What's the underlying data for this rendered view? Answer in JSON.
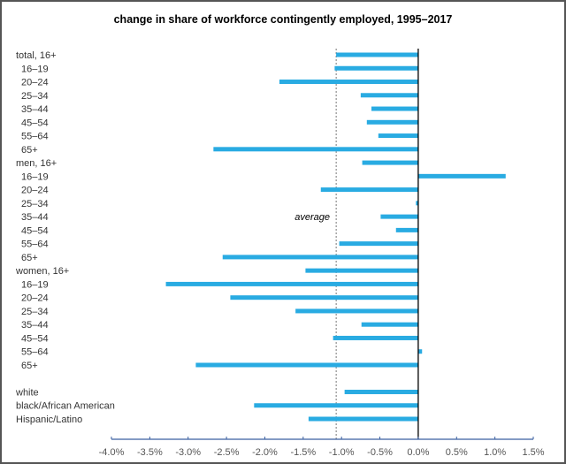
{
  "chart_data": {
    "type": "bar",
    "orientation": "horizontal",
    "title": "change in share of workforce contingently employed, 1995–2017",
    "xlim": [
      -4.0,
      1.5
    ],
    "x_ticks": [
      "-4.0%",
      "-3.5%",
      "-3.0%",
      "-2.5%",
      "-2.0%",
      "-1.5%",
      "-1.0%",
      "-0.5%",
      "0.0%",
      "0.5%",
      "1.0%",
      "1.5%"
    ],
    "x_tick_values": [
      -4.0,
      -3.5,
      -3.0,
      -2.5,
      -2.0,
      -1.5,
      -1.0,
      -0.5,
      0.0,
      0.5,
      1.0,
      1.5
    ],
    "grid": false,
    "bar_color": "#29abe2",
    "average": {
      "label": "average",
      "value": -1.07
    },
    "categories": [
      {
        "label": "total, 16+",
        "value": -1.07,
        "indent": false
      },
      {
        "label": "16–19",
        "value": -1.09,
        "indent": true
      },
      {
        "label": "20–24",
        "value": -1.81,
        "indent": true
      },
      {
        "label": "25–34",
        "value": -0.75,
        "indent": true
      },
      {
        "label": "35–44",
        "value": -0.61,
        "indent": true
      },
      {
        "label": "45–54",
        "value": -0.67,
        "indent": true
      },
      {
        "label": "55–64",
        "value": -0.52,
        "indent": true
      },
      {
        "label": "65+",
        "value": -2.67,
        "indent": true
      },
      {
        "label": "men, 16+",
        "value": -0.73,
        "indent": false
      },
      {
        "label": "16–19",
        "value": 1.14,
        "indent": true
      },
      {
        "label": "20–24",
        "value": -1.27,
        "indent": true
      },
      {
        "label": "25–34",
        "value": -0.03,
        "indent": true
      },
      {
        "label": "35–44",
        "value": -0.49,
        "indent": true
      },
      {
        "label": "45–54",
        "value": -0.29,
        "indent": true
      },
      {
        "label": "55–64",
        "value": -1.03,
        "indent": true
      },
      {
        "label": "65+",
        "value": -2.55,
        "indent": true
      },
      {
        "label": "women, 16+",
        "value": -1.47,
        "indent": false
      },
      {
        "label": "16–19",
        "value": -3.29,
        "indent": true
      },
      {
        "label": "20–24",
        "value": -2.45,
        "indent": true
      },
      {
        "label": "25–34",
        "value": -1.6,
        "indent": true
      },
      {
        "label": "35–44",
        "value": -0.74,
        "indent": true
      },
      {
        "label": "45–54",
        "value": -1.11,
        "indent": true
      },
      {
        "label": "55–64",
        "value": 0.05,
        "indent": true
      },
      {
        "label": "65+",
        "value": -2.9,
        "indent": true
      },
      {
        "label": "white",
        "value": -0.96,
        "indent": false,
        "gap": true
      },
      {
        "label": "black/African American",
        "value": -2.14,
        "indent": false
      },
      {
        "label": "Hispanic/Latino",
        "value": -1.43,
        "indent": false
      }
    ]
  }
}
